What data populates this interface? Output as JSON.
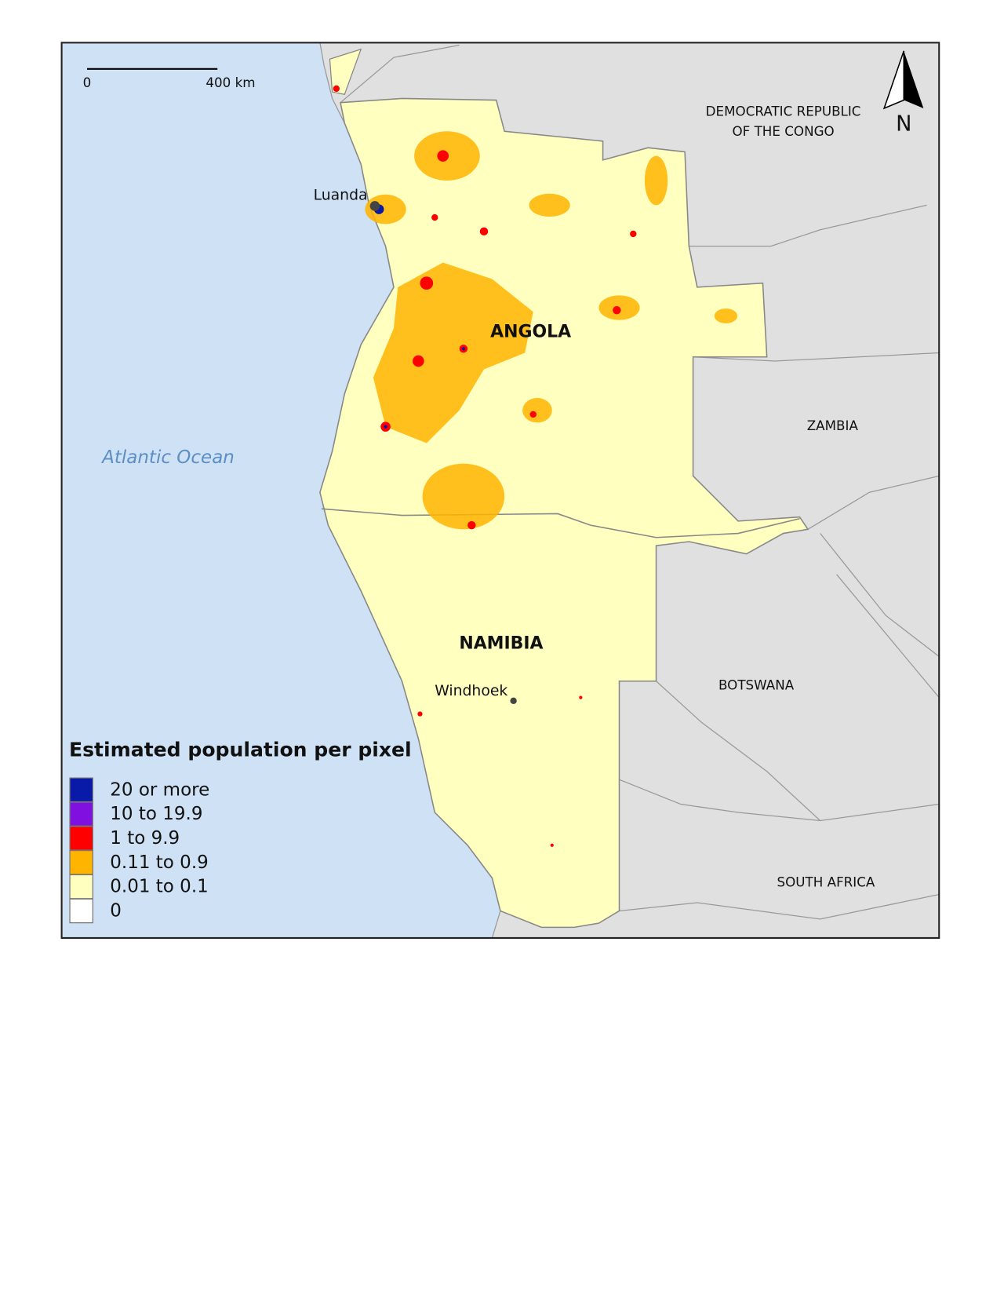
{
  "map": {
    "scale_bar": {
      "start": "0",
      "end": "400 km"
    },
    "north_label": "N",
    "ocean_label": "Atlantic Ocean",
    "countries": {
      "drc": [
        "DEMOCRATIC REPUBLIC",
        "OF THE CONGO"
      ],
      "angola": "ANGOLA",
      "zambia": "ZAMBIA",
      "namibia": "NAMIBIA",
      "botswana": "BOTSWANA",
      "south_africa": "SOUTH AFRICA"
    },
    "cities": [
      "Luanda",
      "Windhoek"
    ],
    "legend": {
      "title": "Estimated population per pixel",
      "items": [
        {
          "label": "20 or more",
          "color": "#0a1aa8"
        },
        {
          "label": "10 to 19.9",
          "color": "#8010e0"
        },
        {
          "label": "1 to 9.9",
          "color": "#ff0000"
        },
        {
          "label": "0.11 to 0.9",
          "color": "#ffb400"
        },
        {
          "label": "0.01 to 0.1",
          "color": "#ffffc0"
        },
        {
          "label": "0",
          "color": "#ffffff"
        }
      ]
    }
  }
}
